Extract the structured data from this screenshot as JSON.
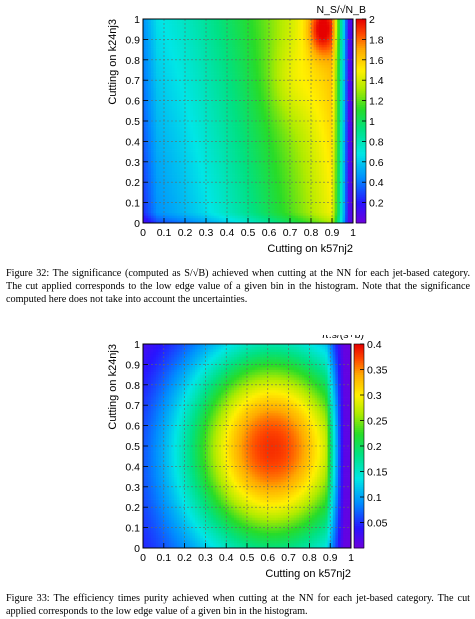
{
  "figures": [
    {
      "ylabel": "Cutting on k24nj3",
      "xlabel": "Cutting on k57nj2",
      "z_title": "N_S/√N_B",
      "caption": "Figure 32: The significance (computed as S/√B) achieved when cutting at the NN for each jet-based category. The cut applied corresponds to the low edge value of a given bin in the histogram. Note that the significance computed here does not take into account the uncertainties."
    },
    {
      "ylabel": "Cutting on k24nj3",
      "xlabel": "Cutting on k57nj2",
      "z_title": "π.s/(s+b)",
      "caption": "Figure 33: The efficiency times purity achieved when cutting at the NN for each jet-based category. The cut applied corresponds to the low edge value of a given bin in the histogram."
    }
  ],
  "chart_data": [
    {
      "type": "heatmap",
      "title": "",
      "xlabel": "Cutting on k57nj2",
      "ylabel": "Cutting on k24nj3",
      "zlabel": "N_S/√N_B",
      "xlim": [
        0,
        1
      ],
      "ylim": [
        0,
        1
      ],
      "zlim": [
        0,
        2
      ],
      "x_ticks": [
        "0",
        "0.1",
        "0.2",
        "0.3",
        "0.4",
        "0.5",
        "0.6",
        "0.7",
        "0.8",
        "0.9",
        "1"
      ],
      "y_ticks": [
        "0",
        "0.1",
        "0.2",
        "0.3",
        "0.4",
        "0.5",
        "0.6",
        "0.7",
        "0.8",
        "0.9",
        "1"
      ],
      "z_ticks": [
        "0.2",
        "0.4",
        "0.6",
        "0.8",
        "1",
        "1.2",
        "1.4",
        "1.6",
        "1.8",
        "2"
      ],
      "grid": true,
      "peak": {
        "x": 0.85,
        "y": 0.93,
        "value": 2.0
      },
      "colormap": "rainbow (violet to red)"
    },
    {
      "type": "heatmap",
      "title": "",
      "xlabel": "Cutting on k57nj2",
      "ylabel": "Cutting on k24nj3",
      "zlabel": "π.s/(s+b)",
      "xlim": [
        0,
        1
      ],
      "ylim": [
        0,
        1
      ],
      "zlim": [
        0,
        0.4
      ],
      "x_ticks": [
        "0",
        "0.1",
        "0.2",
        "0.3",
        "0.4",
        "0.5",
        "0.6",
        "0.7",
        "0.8",
        "0.9",
        "1"
      ],
      "y_ticks": [
        "0",
        "0.1",
        "0.2",
        "0.3",
        "0.4",
        "0.5",
        "0.6",
        "0.7",
        "0.8",
        "0.9",
        "1"
      ],
      "z_ticks": [
        "0.05",
        "0.1",
        "0.15",
        "0.2",
        "0.25",
        "0.3",
        "0.35",
        "0.4"
      ],
      "grid": true,
      "peak": {
        "x": 0.62,
        "y": 0.5,
        "value": 0.4
      },
      "colormap": "rainbow (violet to red)"
    }
  ]
}
